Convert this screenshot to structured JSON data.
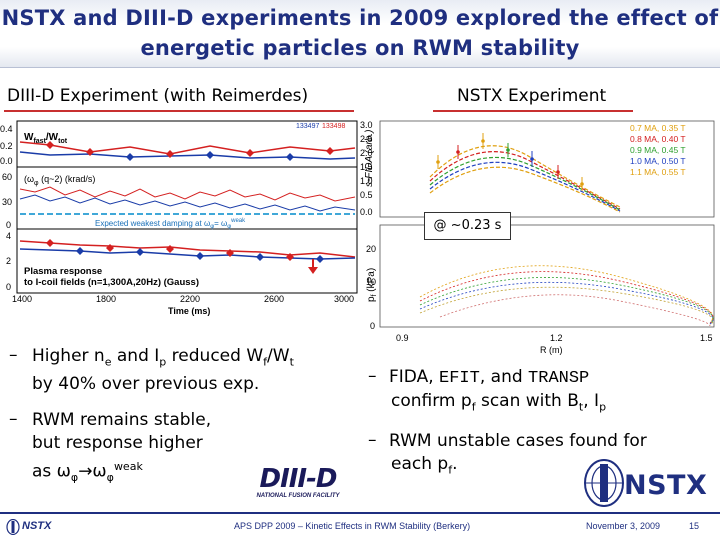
{
  "slide": {
    "title_line1": "NSTX and DIII-D experiments in 2009 explored the effect of",
    "title_line2": "energetic particles on RWM stability",
    "left_heading": "DIII-D Experiment (with Reimerdes)",
    "right_heading": "NSTX Experiment"
  },
  "colors": {
    "title": "#1f2f80",
    "underline": "#c83030",
    "diii_red": "#d42020",
    "diii_blue": "#1a3ca8",
    "dashed_cyan": "#40a8d8"
  },
  "diii_plot": {
    "shot_numbers": [
      "133497",
      "133498"
    ],
    "panel1": {
      "label": "W",
      "label_sub": "fast",
      "label_mid": "/W",
      "label_sub2": "tot",
      "yticks": [
        "0.4",
        "0.2",
        "0.0"
      ]
    },
    "panel2": {
      "label": "(ω",
      "label_sub": "φ",
      "label_rest": " (q~2)  (krad/s)",
      "yticks": [
        "60",
        "30",
        "0"
      ],
      "dashed_label": "Expected weakest damping at ω",
      "dashed_label_sub": "φ",
      "dashed_label_eq": "= ω",
      "dashed_label_sup": "weak",
      "dashed_label_sub2": "φ"
    },
    "panel3": {
      "label_line1": "Plasma response",
      "label_line2": "to I-coil fields (n=1,300A,20Hz) (Gauss)",
      "yticks": [
        "4",
        "2",
        "0"
      ]
    },
    "xticks": [
      "1400",
      "1800",
      "2200",
      "2600",
      "3000"
    ],
    "xlabel": "Time (ms)"
  },
  "nstx_plot": {
    "upper_ylabel": "s-FIDA (arb.)",
    "upper_yticks": [
      "3.0",
      "2.5",
      "2.0",
      "1.5",
      "1.0",
      "0.5",
      "0.0"
    ],
    "legend": [
      {
        "text": "0.7 MA, 0.35 T",
        "color": "#e0a010"
      },
      {
        "text": "0.8 MA, 0.40 T",
        "color": "#d42020"
      },
      {
        "text": "0.9 MA, 0.45 T",
        "color": "#30a030"
      },
      {
        "text": "1.0 MA, 0.50 T",
        "color": "#2040c0"
      },
      {
        "text": "1.1 MA, 0.55 T",
        "color": "#e0a010"
      }
    ],
    "callout": "@ ~0.23 s",
    "lower_ylabel": "p",
    "lower_ylabel_sub": "f",
    "lower_ylabel_unit": " (kPa)",
    "lower_yticks": [
      "20",
      "10",
      "0"
    ],
    "xticks": [
      "0.9",
      "1.2",
      "1.5"
    ],
    "xlabel": "R (m)"
  },
  "bullets_left": {
    "b1_a": "Higher n",
    "b1_a_sub": "e",
    "b1_b": " and I",
    "b1_b_sub": "p",
    "b1_c": " reduced W",
    "b1_c_sub": "f",
    "b1_d": "/W",
    "b1_d_sub": "t",
    "b1_line2": "by 40% over previous exp.",
    "b2_line1": "RWM remains stable,",
    "b2_line2": "but response higher",
    "b2_line3_a": "as ω",
    "b2_line3_sub1": "φ",
    "b2_line3_arrow": "→ω",
    "b2_line3_sub2": "φ",
    "b2_line3_sup": "weak"
  },
  "bullets_right": {
    "b1_a": "FIDA, ",
    "b1_mono1": "EFIT",
    "b1_b": ", and ",
    "b1_mono2": "TRANSP",
    "b1_line2_a": "confirm p",
    "b1_line2_sub": "f",
    "b1_line2_b": " scan with B",
    "b1_line2_sub2": "t",
    "b1_line2_c": ", I",
    "b1_line2_sub3": "p",
    "b2_line1": "RWM unstable cases found for",
    "b2_line2_a": "each p",
    "b2_line2_sub": "f",
    "b2_line2_b": "."
  },
  "logos": {
    "diii_text": "DIII-D",
    "diii_sub": "NATIONAL FUSION FACILITY",
    "nstx_text": "NSTX"
  },
  "footer": {
    "left_label": "NSTX",
    "center": "APS DPP 2009 – Kinetic Effects in RWM Stability (Berkery)",
    "date": "November 3, 2009",
    "page": "15"
  }
}
